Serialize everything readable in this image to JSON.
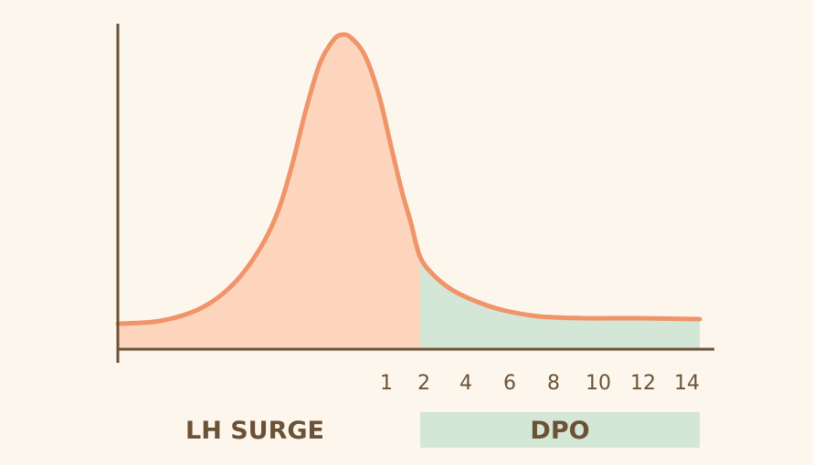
{
  "chart_data": {
    "type": "area",
    "title": "",
    "xlabel": "",
    "ylabel": "",
    "x_ticks": [
      "1",
      "2",
      "4",
      "6",
      "8",
      "10",
      "12",
      "14"
    ],
    "regions": [
      {
        "label": "LH SURGE",
        "color": "#fdd5bd"
      },
      {
        "label": "DPO",
        "color": "#d4e6d5"
      }
    ],
    "curve_color": "#f0946a",
    "axis_color": "#6b5236",
    "grid": false,
    "legend": "none"
  }
}
